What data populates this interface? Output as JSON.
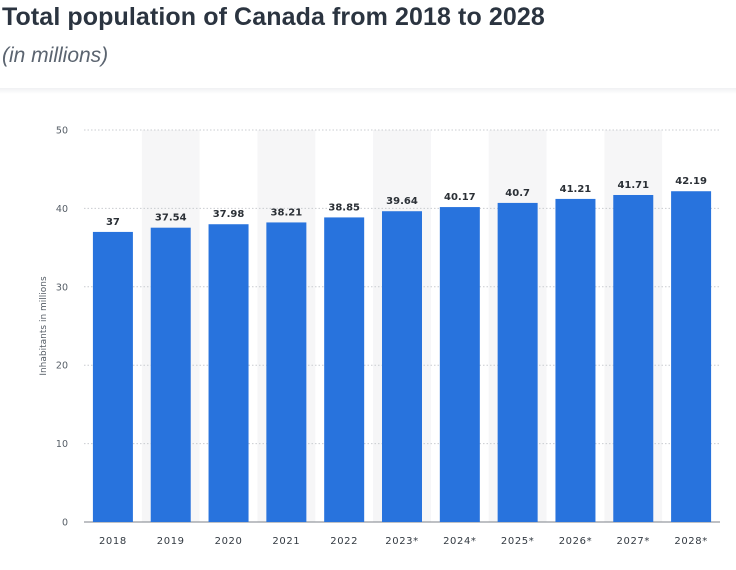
{
  "header": {
    "title": "Total population of Canada from 2018 to 2028",
    "subtitle": "(in millions)"
  },
  "chart_data": {
    "type": "bar",
    "categories": [
      "2018",
      "2019",
      "2020",
      "2021",
      "2022",
      "2023*",
      "2024*",
      "2025*",
      "2026*",
      "2027*",
      "2028*"
    ],
    "values": [
      37,
      37.54,
      37.98,
      38.21,
      38.85,
      39.64,
      40.17,
      40.7,
      41.21,
      41.71,
      42.19
    ],
    "data_labels": [
      "37",
      "37.54",
      "37.98",
      "38.21",
      "38.85",
      "39.64",
      "40.17",
      "40.7",
      "41.21",
      "41.71",
      "42.19"
    ],
    "yticks": [
      "0",
      "10",
      "20",
      "30",
      "40",
      "50"
    ],
    "ylim": [
      0,
      50
    ],
    "xlabel": "",
    "ylabel": "Inhabitants in millions",
    "grid": true,
    "bar_color": "#2873dd",
    "band_color": "#f6f6f7",
    "grid_color": "#c9ccd0"
  }
}
